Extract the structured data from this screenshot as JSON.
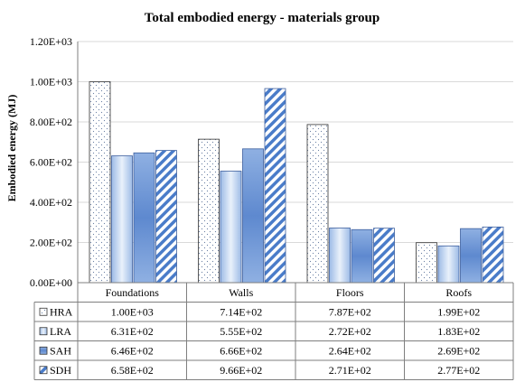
{
  "chart_data": {
    "type": "bar",
    "title": "Total embodied energy - materials group",
    "ylabel": "Embodied energy (MJ)",
    "xlabel": "",
    "ylim": [
      0,
      1200
    ],
    "yticks": [
      "0.00E+00",
      "2.00E+02",
      "4.00E+02",
      "6.00E+02",
      "8.00E+02",
      "1.00E+03",
      "1.20E+03"
    ],
    "categories": [
      "Foundations",
      "Walls",
      "Floors",
      "Roofs"
    ],
    "grid": true,
    "legend_placement": "data table below chart",
    "series": [
      {
        "name": "HRA",
        "values": [
          1000,
          714,
          787,
          199
        ],
        "labels": [
          "1.00E+03",
          "7.14E+02",
          "7.87E+02",
          "1.99E+02"
        ],
        "fill": "dotted",
        "color": "#ffffff"
      },
      {
        "name": "LRA",
        "values": [
          631,
          555,
          272,
          183
        ],
        "labels": [
          "6.31E+02",
          "5.55E+02",
          "2.72E+02",
          "1.83E+02"
        ],
        "fill": "vertical-gradient",
        "color": "#a9c4e8"
      },
      {
        "name": "SAH",
        "values": [
          646,
          666,
          264,
          269
        ],
        "labels": [
          "6.46E+02",
          "6.66E+02",
          "2.64E+02",
          "2.69E+02"
        ],
        "fill": "horizontal-gradient",
        "color": "#6f96d4"
      },
      {
        "name": "SDH",
        "values": [
          658,
          966,
          271,
          277
        ],
        "labels": [
          "6.58E+02",
          "9.66E+02",
          "2.71E+02",
          "2.77E+02"
        ],
        "fill": "diagonal-stripes",
        "color": "#4a7cc9"
      }
    ]
  }
}
